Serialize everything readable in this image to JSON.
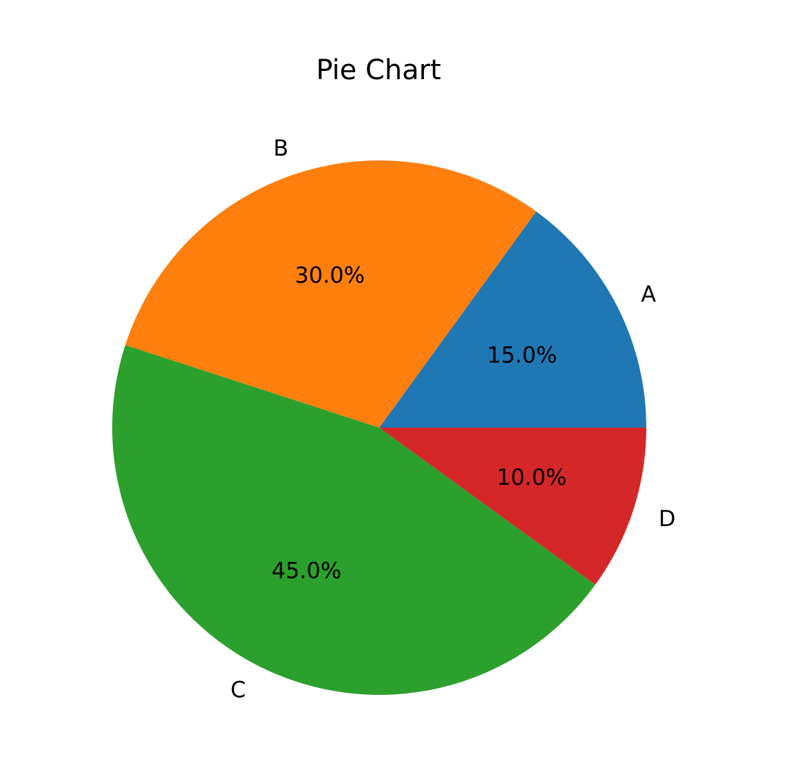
{
  "chart_data": {
    "type": "pie",
    "title": "Pie Chart",
    "categories": [
      "A",
      "B",
      "C",
      "D"
    ],
    "values": [
      15.0,
      30.0,
      45.0,
      10.0
    ],
    "percent_labels": [
      "15.0%",
      "30.0%",
      "45.0%",
      "10.0%"
    ],
    "colors": [
      "#1f77b4",
      "#ff7f0e",
      "#2ca02c",
      "#d62728"
    ],
    "start_angle_deg": 0,
    "direction": "counterclockwise",
    "legend": false
  }
}
